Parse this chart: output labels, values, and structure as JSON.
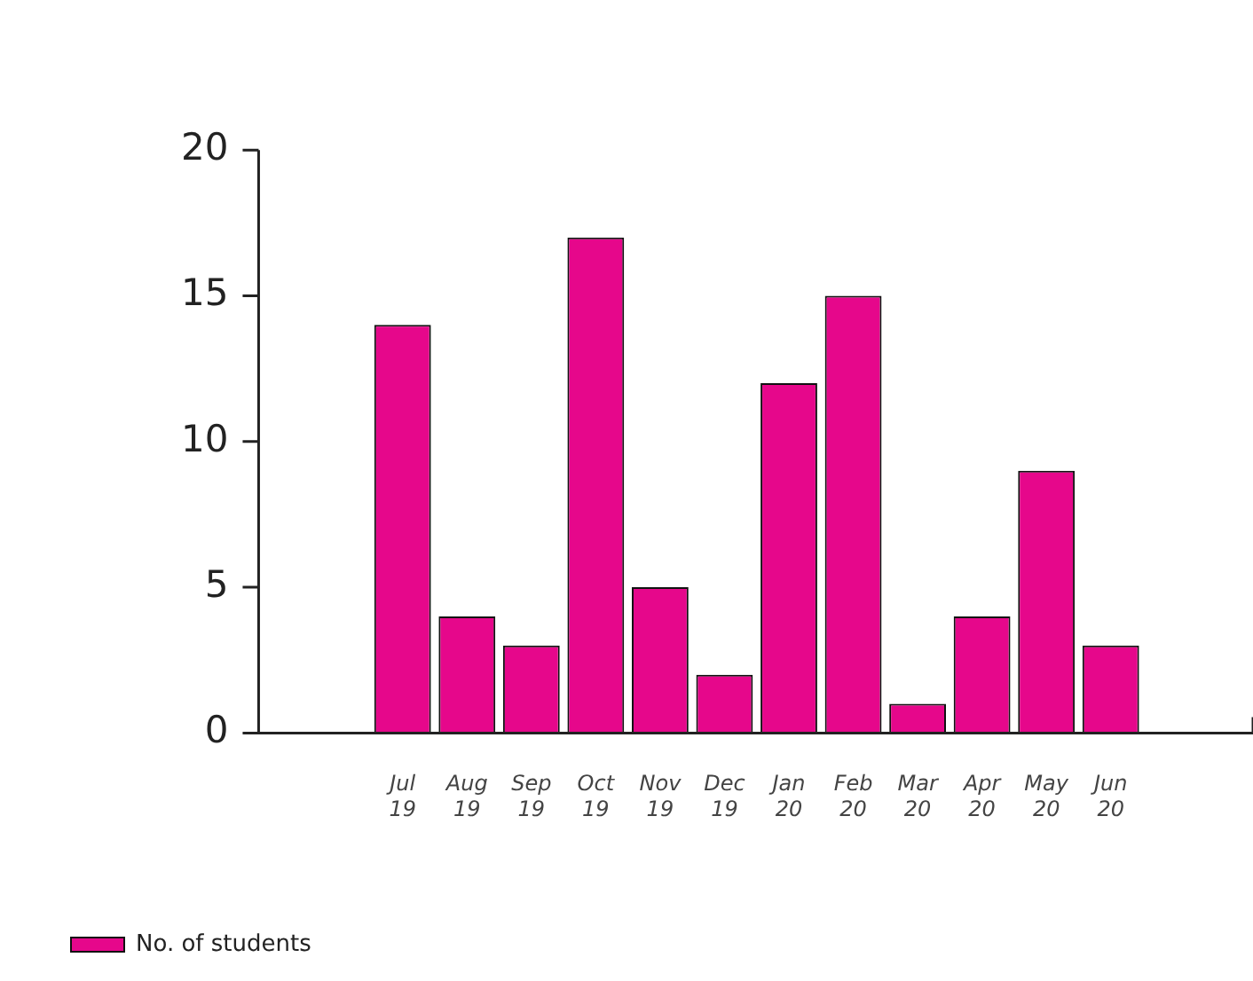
{
  "chart_data": {
    "type": "bar",
    "categories": [
      "Jul 19",
      "Aug 19",
      "Sep 19",
      "Oct 19",
      "Nov 19",
      "Dec 19",
      "Jan 20",
      "Feb 20",
      "Mar 20",
      "Apr 20",
      "May 20",
      "Jun 20"
    ],
    "series": [
      {
        "name": "No. of students",
        "color": "#e6078b",
        "values": [
          14,
          4,
          3,
          17,
          5,
          2,
          12,
          15,
          1,
          4,
          9,
          3
        ]
      }
    ],
    "ylim": [
      0,
      20
    ],
    "yticks": [
      0,
      5,
      10,
      15,
      20
    ],
    "grid": false,
    "legend": "bottom left"
  }
}
